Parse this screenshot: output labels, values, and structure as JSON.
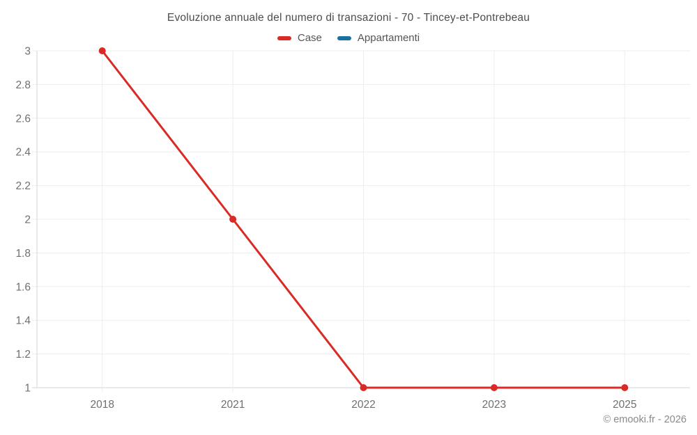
{
  "title": "Evoluzione annuale del numero di transazioni - 70 - Tincey-et-Pontrebeau",
  "legend": {
    "items": [
      {
        "label": "Case",
        "color": "#da2a26"
      },
      {
        "label": "Appartamenti",
        "color": "#1a70a0"
      }
    ]
  },
  "footer": {
    "copyright": "© emooki.fr - 2026"
  },
  "colors": {
    "series_case": "#da2a26",
    "series_appartamenti": "#1a70a0",
    "grid": "#ededed",
    "axis": "#d4d4d4",
    "tick_label": "#6f6f6f",
    "title_text": "#4c4c4c"
  },
  "chart_data": {
    "type": "line",
    "title": "Evoluzione annuale del numero di transazioni - 70 - Tincey-et-Pontrebeau",
    "categories": [
      "2018",
      "2021",
      "2022",
      "2023",
      "2025"
    ],
    "series": [
      {
        "name": "Case",
        "color": "#da2a26",
        "values": [
          3,
          2,
          1,
          1,
          1
        ]
      },
      {
        "name": "Appartamenti",
        "color": "#1a70a0",
        "values": []
      }
    ],
    "xlabel": "",
    "ylabel": "",
    "ylim": [
      1,
      3
    ],
    "ytick_step": 0.2,
    "y_tick_labels": [
      "1",
      "1.2",
      "1.4",
      "1.6",
      "1.8",
      "2",
      "2.2",
      "2.4",
      "2.6",
      "2.8",
      "3"
    ],
    "grid": true,
    "legend_position": "top"
  }
}
